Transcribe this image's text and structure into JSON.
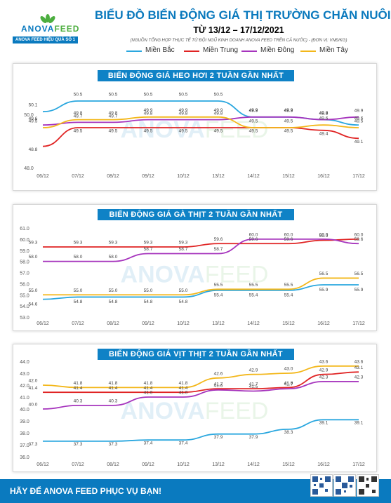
{
  "brand": {
    "name_a": "ANOVA",
    "name_b": "FEED",
    "tagline": "ANOVA FEED HIỆU QUẢ SỐ 1"
  },
  "header": {
    "title": "BIỂU ĐỒ BIẾN ĐỘNG GIÁ THỊ TRƯỜNG CHĂN NUÔI",
    "date": "TỪ 13/12 – 17/12/2021",
    "source": "(NGUỒN TỔNG HỢP THỰC TẾ TỪ ĐỘI NGŨ KINH DOANH ANOVA FEED TRÊN CẢ NƯỚC)   -   (ĐƠN VỊ: VNĐ/KG)"
  },
  "legend": [
    {
      "name": "Miền Bắc",
      "color": "#2aa7df"
    },
    {
      "name": "Miền Trung",
      "color": "#e02424"
    },
    {
      "name": "Miền Đông",
      "color": "#a634bd"
    },
    {
      "name": "Miền Tây",
      "color": "#f3b71a"
    }
  ],
  "watermark": {
    "a": "ANOVA",
    "b": "FEED"
  },
  "footer": {
    "text": "HÃY ĐỂ ANOVA FEED PHỤC VỤ BẠN!"
  },
  "chart_data": [
    {
      "type": "line",
      "title": "BIẾN ĐỘNG GIÁ HEO HƠI 2 TUẦN GẦN NHẤT",
      "categories": [
        "06/12",
        "07/12",
        "08/12",
        "09/12",
        "10/12",
        "13/12",
        "14/12",
        "15/12",
        "16/12",
        "17/12"
      ],
      "ylim": [
        48.0,
        51.0
      ],
      "yticks": [
        "48.0",
        "50.0"
      ],
      "series": [
        {
          "name": "Miền Bắc",
          "color": "#2aa7df",
          "values": [
            50.1,
            50.5,
            50.5,
            50.5,
            50.5,
            50.5,
            49.9,
            49.9,
            49.8,
            49.6
          ]
        },
        {
          "name": "Miền Trung",
          "color": "#e02424",
          "values": [
            48.8,
            49.5,
            49.5,
            49.5,
            49.5,
            49.5,
            49.5,
            49.5,
            49.4,
            49.1
          ]
        },
        {
          "name": "Miền Đông",
          "color": "#a634bd",
          "values": [
            49.6,
            49.7,
            49.7,
            49.8,
            49.8,
            49.8,
            49.9,
            49.9,
            49.8,
            49.9
          ]
        },
        {
          "name": "Miền Tây",
          "color": "#f3b71a",
          "values": [
            49.5,
            49.8,
            49.8,
            49.9,
            49.9,
            49.9,
            49.5,
            49.5,
            49.6,
            49.5
          ]
        }
      ]
    },
    {
      "type": "line",
      "title": "BIẾN ĐỘNG GIÁ GÀ THỊT 2 TUẦN GẦN NHẤT",
      "categories": [
        "06/12",
        "07/12",
        "08/12",
        "09/12",
        "10/12",
        "13/12",
        "14/12",
        "15/12",
        "16/12",
        "17/12"
      ],
      "ylim": [
        53.0,
        61.0
      ],
      "yticks": [
        "53.0",
        "54.0",
        "55.0",
        "56.0",
        "57.0",
        "58.0",
        "59.0",
        "60.0",
        "61.0"
      ],
      "series": [
        {
          "name": "Miền Bắc",
          "color": "#2aa7df",
          "values": [
            54.6,
            54.8,
            54.8,
            54.8,
            54.8,
            55.4,
            55.4,
            55.4,
            55.9,
            55.9
          ]
        },
        {
          "name": "Miền Trung",
          "color": "#e02424",
          "values": [
            59.3,
            59.3,
            59.3,
            59.3,
            59.3,
            59.6,
            59.6,
            59.6,
            59.9,
            60.0
          ]
        },
        {
          "name": "Miền Đông",
          "color": "#a634bd",
          "values": [
            58.0,
            58.0,
            58.0,
            58.7,
            58.7,
            58.7,
            60.0,
            60.0,
            60.0,
            59.6
          ]
        },
        {
          "name": "Miền Tây",
          "color": "#f3b71a",
          "values": [
            55.0,
            55.0,
            55.0,
            55.0,
            55.0,
            55.5,
            55.5,
            55.5,
            56.5,
            56.5
          ]
        }
      ]
    },
    {
      "type": "line",
      "title": "BIẾN ĐỘNG GIÁ VỊT THỊT 2 TUẦN GẦN NHẤT",
      "categories": [
        "06/12",
        "07/12",
        "08/12",
        "09/12",
        "10/12",
        "13/12",
        "14/12",
        "15/12",
        "16/12",
        "17/12"
      ],
      "ylim": [
        36.0,
        44.0
      ],
      "yticks": [
        "36.0",
        "37.0",
        "38.0",
        "39.0",
        "40.0",
        "41.0",
        "42.0",
        "43.0",
        "44.0"
      ],
      "series": [
        {
          "name": "Miền Bắc",
          "color": "#2aa7df",
          "values": [
            37.3,
            37.3,
            37.3,
            37.4,
            37.4,
            37.9,
            37.9,
            38.3,
            39.1,
            39.1
          ]
        },
        {
          "name": "Miền Trung",
          "color": "#e02424",
          "values": [
            41.4,
            41.4,
            41.4,
            41.4,
            41.4,
            41.7,
            41.7,
            41.8,
            42.9,
            43.1
          ]
        },
        {
          "name": "Miền Đông",
          "color": "#a634bd",
          "values": [
            40.0,
            40.3,
            40.3,
            41.0,
            41.0,
            41.6,
            41.5,
            41.7,
            42.3,
            42.3
          ]
        },
        {
          "name": "Miền Tây",
          "color": "#f3b71a",
          "values": [
            42.0,
            41.8,
            41.8,
            41.8,
            41.8,
            42.6,
            42.9,
            43.0,
            43.6,
            43.6
          ]
        }
      ]
    }
  ]
}
